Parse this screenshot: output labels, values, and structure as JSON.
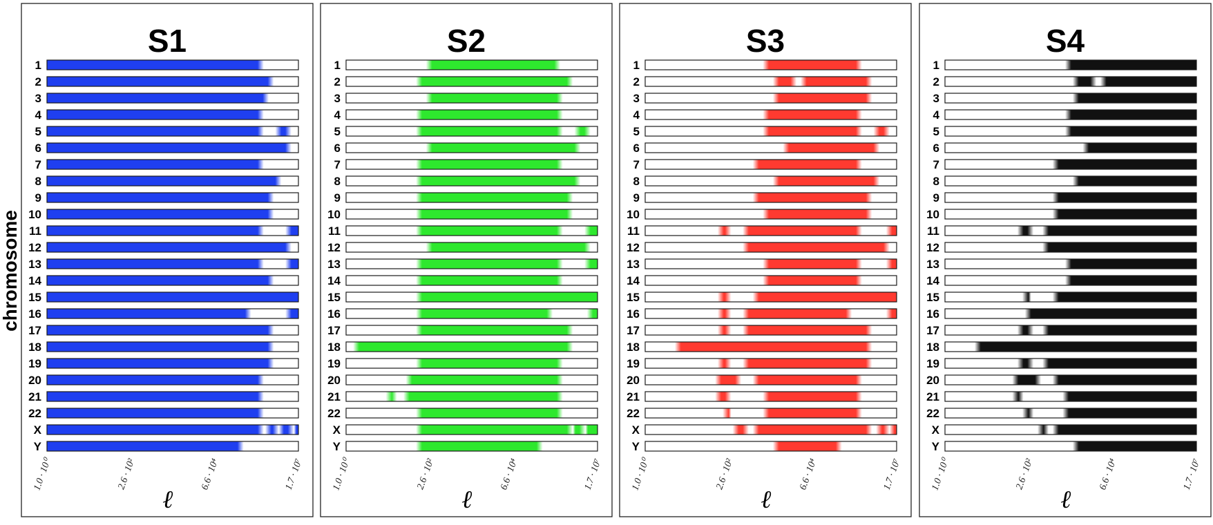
{
  "chart_data": {
    "type": "heatmap",
    "ylabel": "chromosome",
    "xlabel": "ℓ",
    "x_scale": "log",
    "x_range": [
      1.0,
      17000000
    ],
    "xticks": [
      {
        "value": 1.0,
        "label": "1.0 · 10⁰"
      },
      {
        "value": 260,
        "label": "2.6 · 10²"
      },
      {
        "value": 66000,
        "label": "6.6 · 10⁴"
      },
      {
        "value": 17000000,
        "label": "1.7 · 10⁷"
      }
    ],
    "rows": [
      "1",
      "2",
      "3",
      "4",
      "5",
      "6",
      "7",
      "8",
      "9",
      "10",
      "11",
      "12",
      "13",
      "14",
      "15",
      "16",
      "17",
      "18",
      "19",
      "20",
      "21",
      "22",
      "X",
      "Y"
    ],
    "panels": [
      {
        "title": "S1",
        "color": "#1f3ff0",
        "segments": [
          [
            [
              0.0,
              0.85
            ]
          ],
          [
            [
              0.0,
              0.89
            ]
          ],
          [
            [
              0.0,
              0.87
            ]
          ],
          [
            [
              0.0,
              0.85
            ]
          ],
          [
            [
              0.0,
              0.85
            ],
            [
              0.92,
              0.96
            ]
          ],
          [
            [
              0.0,
              0.96
            ]
          ],
          [
            [
              0.0,
              0.85
            ]
          ],
          [
            [
              0.0,
              0.92
            ]
          ],
          [
            [
              0.0,
              0.89
            ]
          ],
          [
            [
              0.0,
              0.89
            ]
          ],
          [
            [
              0.0,
              0.85
            ],
            [
              0.96,
              1.0
            ]
          ],
          [
            [
              0.0,
              0.96
            ]
          ],
          [
            [
              0.0,
              0.85
            ],
            [
              0.96,
              1.0
            ]
          ],
          [
            [
              0.0,
              0.89
            ]
          ],
          [
            [
              0.0,
              1.0
            ]
          ],
          [
            [
              0.0,
              0.8
            ],
            [
              0.96,
              1.0
            ]
          ],
          [
            [
              0.0,
              0.89
            ]
          ],
          [
            [
              0.0,
              0.89
            ]
          ],
          [
            [
              0.0,
              0.89
            ]
          ],
          [
            [
              0.0,
              0.85
            ]
          ],
          [
            [
              0.0,
              0.85
            ]
          ],
          [
            [
              0.0,
              0.85
            ]
          ],
          [
            [
              0.0,
              0.85
            ],
            [
              0.88,
              0.91
            ],
            [
              0.93,
              0.97
            ],
            [
              0.98,
              1.0
            ]
          ],
          [
            [
              0.0,
              0.77
            ]
          ]
        ]
      },
      {
        "title": "S2",
        "color": "#2ee82e",
        "segments": [
          [
            [
              0.33,
              0.84
            ]
          ],
          [
            [
              0.29,
              0.89
            ]
          ],
          [
            [
              0.33,
              0.85
            ]
          ],
          [
            [
              0.29,
              0.85
            ]
          ],
          [
            [
              0.29,
              0.85
            ],
            [
              0.92,
              0.96
            ]
          ],
          [
            [
              0.33,
              0.92
            ]
          ],
          [
            [
              0.29,
              0.85
            ]
          ],
          [
            [
              0.29,
              0.92
            ]
          ],
          [
            [
              0.29,
              0.89
            ]
          ],
          [
            [
              0.29,
              0.89
            ]
          ],
          [
            [
              0.29,
              0.85
            ],
            [
              0.96,
              1.0
            ]
          ],
          [
            [
              0.33,
              0.96
            ]
          ],
          [
            [
              0.29,
              0.85
            ],
            [
              0.96,
              1.0
            ]
          ],
          [
            [
              0.29,
              0.85
            ]
          ],
          [
            [
              0.29,
              1.0
            ]
          ],
          [
            [
              0.29,
              0.81
            ],
            [
              0.97,
              1.0
            ]
          ],
          [
            [
              0.29,
              0.89
            ]
          ],
          [
            [
              0.04,
              0.89
            ]
          ],
          [
            [
              0.29,
              0.85
            ]
          ],
          [
            [
              0.25,
              0.85
            ]
          ],
          [
            [
              0.17,
              0.19
            ],
            [
              0.24,
              0.85
            ]
          ],
          [
            [
              0.29,
              0.85
            ]
          ],
          [
            [
              0.29,
              0.89
            ],
            [
              0.9,
              0.94
            ],
            [
              0.95,
              1.0
            ]
          ],
          [
            [
              0.29,
              0.77
            ]
          ]
        ]
      },
      {
        "title": "S3",
        "color": "#ff3a30",
        "segments": [
          [
            [
              0.48,
              0.85
            ]
          ],
          [
            [
              0.52,
              0.59
            ],
            [
              0.63,
              0.89
            ]
          ],
          [
            [
              0.52,
              0.89
            ]
          ],
          [
            [
              0.48,
              0.85
            ]
          ],
          [
            [
              0.48,
              0.85
            ],
            [
              0.92,
              0.96
            ]
          ],
          [
            [
              0.56,
              0.92
            ]
          ],
          [
            [
              0.44,
              0.85
            ]
          ],
          [
            [
              0.52,
              0.92
            ]
          ],
          [
            [
              0.44,
              0.89
            ]
          ],
          [
            [
              0.48,
              0.89
            ]
          ],
          [
            [
              0.3,
              0.33
            ],
            [
              0.4,
              0.85
            ],
            [
              0.97,
              1.0
            ]
          ],
          [
            [
              0.4,
              0.96
            ]
          ],
          [
            [
              0.48,
              0.85
            ],
            [
              0.97,
              1.0
            ]
          ],
          [
            [
              0.48,
              0.85
            ]
          ],
          [
            [
              0.3,
              0.33
            ],
            [
              0.44,
              1.0
            ]
          ],
          [
            [
              0.3,
              0.33
            ],
            [
              0.4,
              0.81
            ],
            [
              0.97,
              1.0
            ]
          ],
          [
            [
              0.3,
              0.33
            ],
            [
              0.4,
              0.89
            ]
          ],
          [
            [
              0.13,
              0.89
            ]
          ],
          [
            [
              0.3,
              0.33
            ],
            [
              0.4,
              0.89
            ]
          ],
          [
            [
              0.29,
              0.37
            ],
            [
              0.44,
              0.85
            ]
          ],
          [
            [
              0.29,
              0.33
            ],
            [
              0.48,
              0.85
            ]
          ],
          [
            [
              0.32,
              0.33
            ],
            [
              0.48,
              0.85
            ]
          ],
          [
            [
              0.36,
              0.4
            ],
            [
              0.44,
              0.89
            ],
            [
              0.93,
              0.96
            ],
            [
              0.98,
              1.0
            ]
          ],
          [
            [
              0.52,
              0.77
            ]
          ]
        ]
      },
      {
        "title": "S4",
        "color": "#111111",
        "segments": [
          [
            [
              0.49,
              1.0
            ]
          ],
          [
            [
              0.52,
              0.59
            ],
            [
              0.63,
              1.0
            ]
          ],
          [
            [
              0.52,
              1.0
            ]
          ],
          [
            [
              0.49,
              1.0
            ]
          ],
          [
            [
              0.49,
              1.0
            ]
          ],
          [
            [
              0.56,
              1.0
            ]
          ],
          [
            [
              0.44,
              1.0
            ]
          ],
          [
            [
              0.52,
              1.0
            ]
          ],
          [
            [
              0.44,
              1.0
            ]
          ],
          [
            [
              0.44,
              1.0
            ]
          ],
          [
            [
              0.3,
              0.34
            ],
            [
              0.4,
              1.0
            ]
          ],
          [
            [
              0.4,
              1.0
            ]
          ],
          [
            [
              0.49,
              1.0
            ]
          ],
          [
            [
              0.49,
              1.0
            ]
          ],
          [
            [
              0.32,
              0.33
            ],
            [
              0.44,
              1.0
            ]
          ],
          [
            [
              0.33,
              1.0
            ]
          ],
          [
            [
              0.3,
              0.34
            ],
            [
              0.4,
              1.0
            ]
          ],
          [
            [
              0.13,
              1.0
            ]
          ],
          [
            [
              0.3,
              0.34
            ],
            [
              0.4,
              1.0
            ]
          ],
          [
            [
              0.28,
              0.37
            ],
            [
              0.44,
              1.0
            ]
          ],
          [
            [
              0.28,
              0.3
            ],
            [
              0.48,
              1.0
            ]
          ],
          [
            [
              0.32,
              0.34
            ],
            [
              0.48,
              1.0
            ]
          ],
          [
            [
              0.38,
              0.4
            ],
            [
              0.44,
              1.0
            ]
          ],
          [
            [
              0.52,
              1.0
            ]
          ]
        ]
      }
    ]
  }
}
